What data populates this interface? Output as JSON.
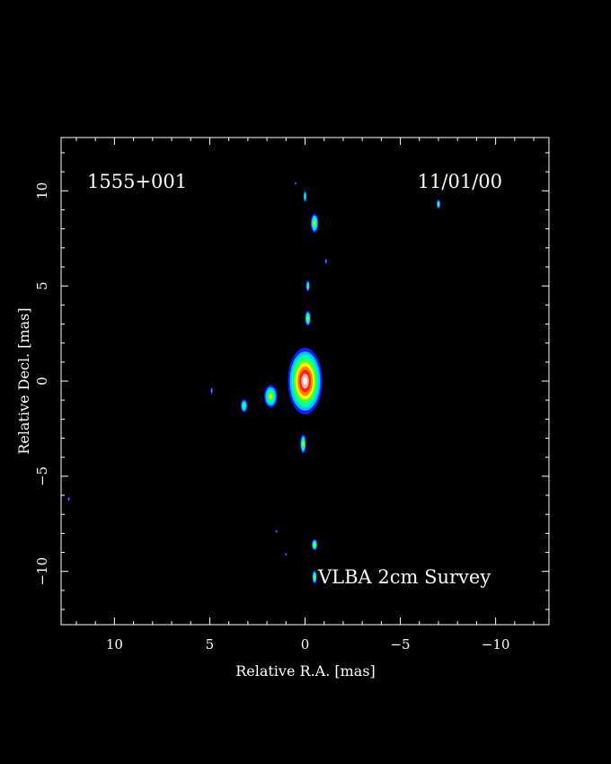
{
  "chart_data": {
    "type": "heatmap",
    "title_left": "1555+001",
    "title_right": "11/01/00",
    "annotation": "VLBA 2cm Survey",
    "xlabel": "Relative R.A. [mas]",
    "ylabel": "Relative Decl. [mas]",
    "xlim": [
      12.8,
      -12.8
    ],
    "ylim": [
      -12.8,
      12.8
    ],
    "x_ticks": [
      10,
      5,
      0,
      -5,
      -10
    ],
    "x_tick_labels": [
      "10",
      "5",
      "0",
      "−5",
      "−10"
    ],
    "y_ticks": [
      10,
      5,
      0,
      -5,
      -10
    ],
    "y_tick_labels": [
      "10",
      "5",
      "0",
      "−5",
      "−10"
    ],
    "components": [
      {
        "x": 0.0,
        "y": 0.0,
        "rx": 0.9,
        "ry": 1.75,
        "level": 1.0
      },
      {
        "x": 1.8,
        "y": -0.8,
        "rx": 0.35,
        "ry": 0.6,
        "level": 0.55
      },
      {
        "x": 3.2,
        "y": -1.3,
        "rx": 0.18,
        "ry": 0.35,
        "level": 0.4
      },
      {
        "x": 4.9,
        "y": -0.5,
        "rx": 0.06,
        "ry": 0.2,
        "level": 0.15
      },
      {
        "x": -0.15,
        "y": 3.3,
        "rx": 0.15,
        "ry": 0.4,
        "level": 0.45
      },
      {
        "x": -0.15,
        "y": 5.0,
        "rx": 0.1,
        "ry": 0.3,
        "level": 0.35
      },
      {
        "x": -1.1,
        "y": 6.3,
        "rx": 0.05,
        "ry": 0.15,
        "level": 0.15
      },
      {
        "x": -0.5,
        "y": 8.3,
        "rx": 0.2,
        "ry": 0.5,
        "level": 0.55
      },
      {
        "x": 0.0,
        "y": 9.7,
        "rx": 0.08,
        "ry": 0.3,
        "level": 0.35
      },
      {
        "x": 0.5,
        "y": 10.4,
        "rx": 0.04,
        "ry": 0.06,
        "level": 0.1
      },
      {
        "x": -7.0,
        "y": 9.3,
        "rx": 0.1,
        "ry": 0.25,
        "level": 0.35
      },
      {
        "x": 0.1,
        "y": -3.3,
        "rx": 0.15,
        "ry": 0.5,
        "level": 0.5
      },
      {
        "x": -0.5,
        "y": -8.6,
        "rx": 0.15,
        "ry": 0.3,
        "level": 0.45
      },
      {
        "x": -0.5,
        "y": -10.3,
        "rx": 0.12,
        "ry": 0.35,
        "level": 0.45
      },
      {
        "x": 1.5,
        "y": -7.9,
        "rx": 0.04,
        "ry": 0.08,
        "level": 0.1
      },
      {
        "x": 1.0,
        "y": -9.1,
        "rx": 0.03,
        "ry": 0.05,
        "level": 0.1
      },
      {
        "x": 12.4,
        "y": -6.2,
        "rx": 0.05,
        "ry": 0.12,
        "level": 0.12
      }
    ],
    "colors": {
      "background": "#000000",
      "frame": "#ffffff",
      "level_stops": [
        "#1a1aff",
        "#00c8ff",
        "#00ffa0",
        "#40ff40",
        "#ffff00",
        "#ff8000",
        "#ff2000",
        "#ffb0b0",
        "#ffffff"
      ]
    }
  }
}
